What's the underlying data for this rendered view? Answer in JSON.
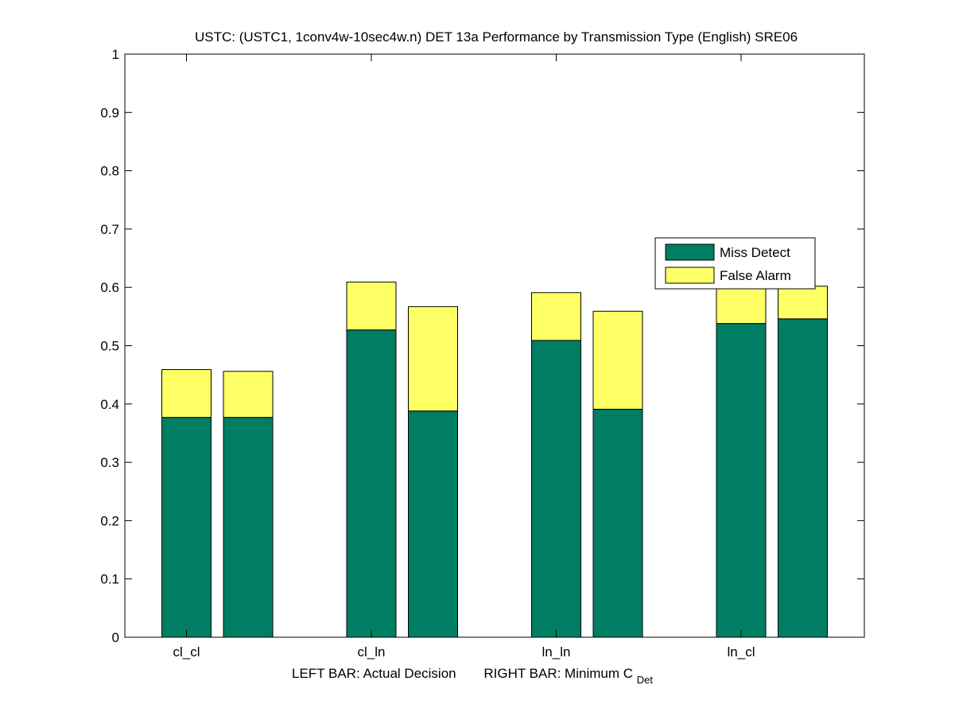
{
  "chart_data": {
    "type": "bar",
    "stacked": true,
    "title": "USTC: (USTC1, 1conv4w-10sec4w.n) DET 13a Performance by Transmission Type (English) SRE06",
    "xlabel": {
      "left": "LEFT BAR: Actual Decision",
      "right_prefix": "RIGHT BAR: Minimum C",
      "right_subscript": "Det"
    },
    "ylabel": "",
    "ylim": [
      0,
      1
    ],
    "yticks": [
      "0",
      "0.1",
      "0.2",
      "0.3",
      "0.4",
      "0.5",
      "0.6",
      "0.7",
      "0.8",
      "0.9",
      "1"
    ],
    "categories": [
      "cl_cl",
      "cl_ln",
      "ln_ln",
      "ln_cl"
    ],
    "bars_per_category": [
      "Actual Decision",
      "Minimum C_Det"
    ],
    "series": [
      {
        "name": "Miss Detect",
        "color": "#007e64",
        "values": [
          [
            0.377,
            0.377
          ],
          [
            0.527,
            0.388
          ],
          [
            0.509,
            0.391
          ],
          [
            0.538,
            0.546
          ]
        ]
      },
      {
        "name": "False Alarm",
        "color": "#ffff66",
        "values": [
          [
            0.082,
            0.079
          ],
          [
            0.082,
            0.179
          ],
          [
            0.082,
            0.168
          ],
          [
            0.082,
            0.056
          ]
        ]
      }
    ],
    "legend_position": "upper-right",
    "grid": false
  }
}
